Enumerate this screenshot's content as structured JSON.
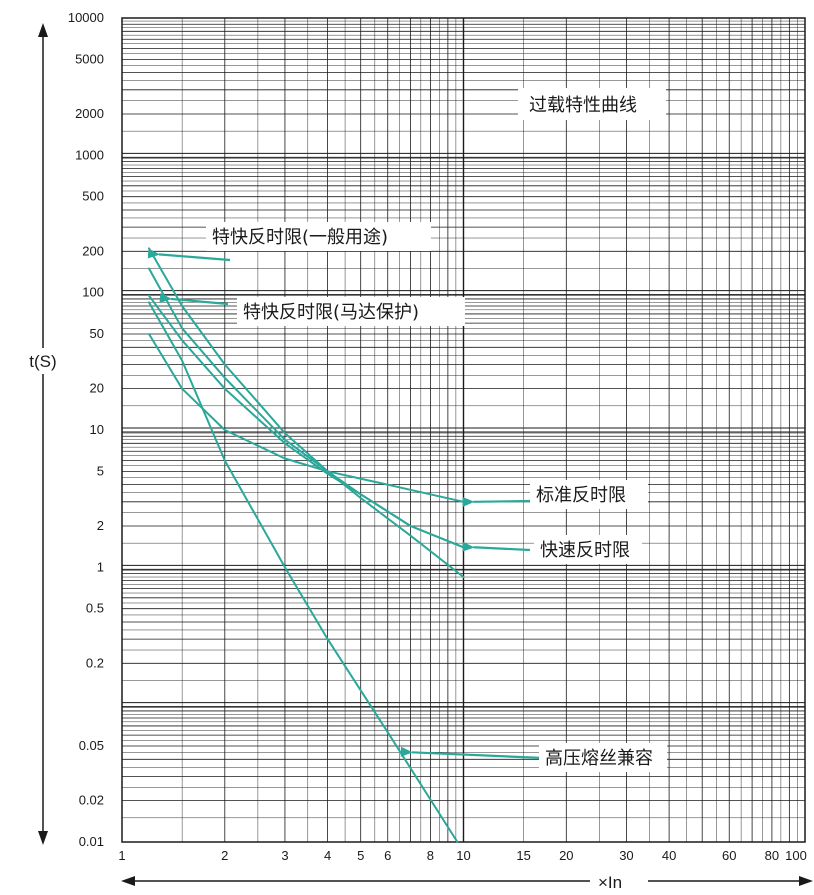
{
  "chart_data": {
    "type": "line",
    "title": "过载特性曲线",
    "xlabel": "×In",
    "ylabel": "t(S)",
    "x_scale": "log",
    "y_scale": "log",
    "xlim": [
      1,
      100
    ],
    "ylim": [
      0.01,
      10000
    ],
    "grid": true,
    "x_ticks": [
      1,
      2,
      3,
      4,
      5,
      6,
      8,
      10,
      15,
      20,
      30,
      40,
      60,
      80,
      100
    ],
    "x_tick_labels": [
      "1",
      "2",
      "3",
      "4",
      "5",
      "6",
      "8",
      "10",
      "15",
      "20",
      "30",
      "40",
      "60",
      "80",
      "100"
    ],
    "y_ticks": [
      0.01,
      0.02,
      0.05,
      0.2,
      0.5,
      1,
      2,
      5,
      10,
      20,
      50,
      100,
      200,
      500,
      1000,
      2000,
      5000,
      10000
    ],
    "y_tick_labels": [
      "0.01",
      "0.02",
      "0.05",
      "0.2",
      "0.5",
      "1",
      "2",
      "5",
      "10",
      "20",
      "50",
      "100",
      "200",
      "500",
      "1000",
      "2000",
      "5000",
      "10000"
    ],
    "line_color": "#2aa89a",
    "series": [
      {
        "name": "特快反时限(一般用途)",
        "x": [
          1.2,
          1.5,
          2,
          3,
          4,
          5,
          7,
          10
        ],
        "y": [
          210,
          80,
          30,
          9.5,
          5,
          3.2,
          1.7,
          0.85
        ]
      },
      {
        "name": "特快反时限(马达保护)",
        "x": [
          1.2,
          1.5,
          2,
          3,
          4,
          5,
          7,
          10
        ],
        "y": [
          95,
          45,
          20,
          8,
          4.8,
          3.4,
          2,
          1.4
        ]
      },
      {
        "name": "标准反时限",
        "x": [
          1.2,
          1.5,
          2,
          3,
          4,
          6,
          10
        ],
        "y": [
          50,
          20,
          10,
          6.2,
          5,
          4,
          3
        ]
      },
      {
        "name": "快速反时限",
        "x": [
          1.2,
          1.5,
          2,
          3,
          4,
          5,
          7,
          10
        ],
        "y": [
          150,
          55,
          24,
          8.5,
          5,
          3.4,
          2,
          1.4
        ]
      },
      {
        "name": "高压熔丝兼容",
        "x": [
          1.2,
          1.5,
          2,
          3,
          4,
          6,
          9.6
        ],
        "y": [
          85,
          32,
          6,
          1,
          0.3,
          0.063,
          0.01
        ]
      }
    ],
    "annotations": [
      {
        "series": "特快反时限(一般用途)",
        "text": "特快反时限(一般用途)",
        "x": 1.2,
        "y": 190
      },
      {
        "series": "特快反时限(马达保护)",
        "text": "特快反时限(马达保护)",
        "x": 1.3,
        "y": 90
      },
      {
        "series": "标准反时限",
        "text": "标准反时限",
        "x": 10,
        "y": 3
      },
      {
        "series": "快速反时限",
        "text": "快速反时限",
        "x": 10,
        "y": 1.4
      },
      {
        "series": "高压熔丝兼容",
        "text": "高压熔丝兼容",
        "x": 6.6,
        "y": 0.045
      }
    ]
  }
}
